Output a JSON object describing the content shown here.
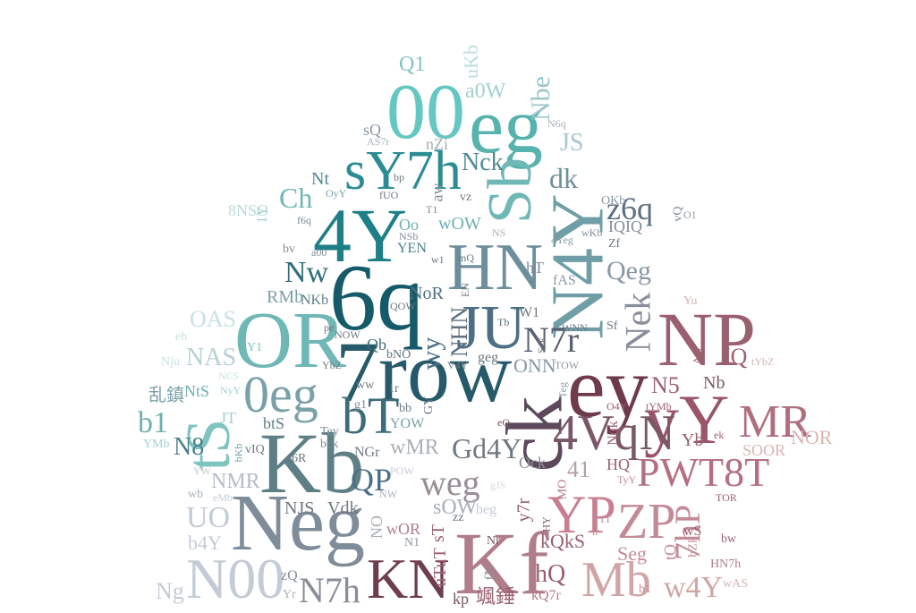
{
  "words": [
    {
      "text": "Neg",
      "color": "#7f8c99"
    },
    {
      "text": "Kb",
      "color": "#5e7f86"
    },
    {
      "text": "4Y",
      "color": "#1e7f86"
    },
    {
      "text": "6q",
      "color": "#155a68"
    },
    {
      "text": "7row",
      "color": "#265a6a"
    },
    {
      "text": "OR",
      "color": "#6fb8b6"
    },
    {
      "text": "00",
      "color": "#64c7c1"
    },
    {
      "text": "eg",
      "color": "#56b3ae"
    },
    {
      "text": "Sb",
      "color": "#6fb8b6"
    },
    {
      "text": "sY7h",
      "color": "#2b8c94"
    },
    {
      "text": "HN",
      "color": "#6d8f9c"
    },
    {
      "text": "N4Y",
      "color": "#6f9ea6"
    },
    {
      "text": "JU",
      "color": "#4c6f86"
    },
    {
      "text": "ey",
      "color": "#6e3a4c"
    },
    {
      "text": "NP",
      "color": "#9a6070"
    },
    {
      "text": "ck",
      "color": "#5c4a5c"
    },
    {
      "text": "Kf",
      "color": "#b07d8a"
    },
    {
      "text": "Mb",
      "color": "#d1a5a5"
    },
    {
      "text": "ZP",
      "color": "#c48b96"
    },
    {
      "text": "YP",
      "color": "#c87f91"
    },
    {
      "text": "N00",
      "color": "#c4cbd7"
    },
    {
      "text": "KN",
      "color": "#6e3d4e"
    },
    {
      "text": "N7h",
      "color": "#8a8e96"
    },
    {
      "text": "MR",
      "color": "#b06f7e"
    },
    {
      "text": "yY",
      "color": "#9a5568"
    },
    {
      "text": "4VqN",
      "color": "#7a5868"
    },
    {
      "text": "PWT8T",
      "color": "#b47080"
    },
    {
      "text": "0eg",
      "color": "#7aa0a8"
    },
    {
      "text": "tS",
      "color": "#7fc4c0"
    },
    {
      "text": "bT",
      "color": "#3d6b7a"
    },
    {
      "text": "weg",
      "color": "#9a8e96"
    },
    {
      "text": "Gd4Y",
      "color": "#6f7880"
    },
    {
      "text": "Nek",
      "color": "#8a8e9c"
    },
    {
      "text": "N7r",
      "color": "#5a6070"
    },
    {
      "text": "Nw",
      "color": "#2f6e7a"
    },
    {
      "text": "Ch",
      "color": "#6fb8b6"
    },
    {
      "text": "Nck",
      "color": "#4c8a94"
    },
    {
      "text": "JS",
      "color": "#a8c7cf"
    },
    {
      "text": "dk",
      "color": "#6d8f9c"
    },
    {
      "text": "z6q",
      "color": "#5e7080"
    },
    {
      "text": "Qeg",
      "color": "#8a98a6"
    },
    {
      "text": "Nbe",
      "color": "#9ac4c8"
    },
    {
      "text": "a0W",
      "color": "#a3d1cf"
    },
    {
      "text": "Q1",
      "color": "#7fc4c0"
    },
    {
      "text": "uKb",
      "color": "#b7dcdb"
    },
    {
      "text": "7hP",
      "color": "#c48b96"
    },
    {
      "text": "w4Y",
      "color": "#d1a5a5"
    },
    {
      "text": "N8",
      "color": "#4c7f8a"
    },
    {
      "text": "b1",
      "color": "#6fb0b0"
    },
    {
      "text": "NAS",
      "color": "#b7d0d6"
    },
    {
      "text": "OAS",
      "color": "#c6e2e0"
    },
    {
      "text": "UO",
      "color": "#c2cad6"
    },
    {
      "text": "NMR",
      "color": "#b4bcc8"
    },
    {
      "text": "QP",
      "color": "#4c6f86"
    },
    {
      "text": "sOW",
      "color": "#a8b0b8"
    },
    {
      "text": "41",
      "color": "#b2a0aa"
    },
    {
      "text": "HQ",
      "color": "#9a6070"
    },
    {
      "text": "NOR",
      "color": "#d8b4b4"
    },
    {
      "text": "IQ",
      "color": "#9a6070"
    },
    {
      "text": "N5",
      "color": "#9a6070"
    },
    {
      "text": "Nb",
      "color": "#7a5868"
    },
    {
      "text": "SOOR",
      "color": "#d8b4b4"
    },
    {
      "text": "ONN",
      "color": "#8a98a6"
    },
    {
      "text": "Seg",
      "color": "#c48b96"
    },
    {
      "text": "hQ",
      "color": "#9a6070"
    },
    {
      "text": "kQkS",
      "color": "#9a6070"
    },
    {
      "text": "Yb",
      "color": "#9a6070"
    },
    {
      "text": "Ock",
      "color": "#8a8e96"
    },
    {
      "text": "wMR",
      "color": "#a8b0b8"
    },
    {
      "text": "bMR",
      "color": "#a8b0b8"
    },
    {
      "text": "Vdk",
      "color": "#6d7880"
    },
    {
      "text": "NJS",
      "color": "#6d7880"
    },
    {
      "text": "Ng",
      "color": "#c4cbd7"
    },
    {
      "text": "b4Y",
      "color": "#c4cbd7"
    },
    {
      "text": "8NSO",
      "color": "#b7dcdb"
    },
    {
      "text": "RMb",
      "color": "#7aa0a8"
    },
    {
      "text": "NKb",
      "color": "#5e7f86"
    },
    {
      "text": "NoR",
      "color": "#4c6f86"
    },
    {
      "text": "Qb",
      "color": "#3d6b7a"
    },
    {
      "text": "YEN",
      "color": "#4c7f8a"
    },
    {
      "text": "wOW",
      "color": "#6fb0b0"
    },
    {
      "text": "Oo",
      "color": "#6fb0b0"
    },
    {
      "text": "Nt",
      "color": "#4c8a94"
    },
    {
      "text": "JT",
      "color": "#a3d1cf"
    },
    {
      "text": "NtS",
      "color": "#6fb0b0"
    },
    {
      "text": "btS",
      "color": "#5e7f86"
    },
    {
      "text": "NGr",
      "color": "#6d7880"
    },
    {
      "text": "YOW",
      "color": "#7aa0a8"
    },
    {
      "text": "wOR",
      "color": "#b07d8a"
    },
    {
      "text": "uTuT",
      "color": "#9a6070"
    },
    {
      "text": "sT",
      "color": "#9a6070"
    },
    {
      "text": "zz",
      "color": "#5e7080"
    },
    {
      "text": "fN",
      "color": "#8a8e96"
    },
    {
      "text": "Nr",
      "color": "#7a5868"
    },
    {
      "text": "N1",
      "color": "#8a98a6"
    },
    {
      "text": "beg",
      "color": "#c4cbd7"
    },
    {
      "text": "tQ",
      "color": "#c48b96"
    },
    {
      "text": "bZP",
      "color": "#c48b96"
    },
    {
      "text": "wS",
      "color": "#9a6070"
    },
    {
      "text": "bw",
      "color": "#9a6070"
    },
    {
      "text": "HN7h",
      "color": "#b07d8a"
    },
    {
      "text": "b1",
      "color": "#c48b96"
    },
    {
      "text": "wAS",
      "color": "#d8b4b4"
    },
    {
      "text": "kQ7r",
      "color": "#b07d8a"
    },
    {
      "text": "kp",
      "color": "#7a5868"
    },
    {
      "text": "颯錘",
      "color": "#9a6070"
    },
    {
      "text": "乱鎮",
      "color": "#7aa0a8"
    },
    {
      "text": "Yr",
      "color": "#a8b0b8"
    },
    {
      "text": "zQ",
      "color": "#7f8c99"
    },
    {
      "text": "W1",
      "color": "#6d7880"
    },
    {
      "text": "Tb",
      "color": "#5e7080"
    },
    {
      "text": "geg",
      "color": "#6d7880"
    },
    {
      "text": "wy",
      "color": "#4c6f86"
    },
    {
      "text": "NHN",
      "color": "#5e7080"
    },
    {
      "text": "bNO",
      "color": "#5e7080"
    },
    {
      "text": "g1",
      "color": "#7f8c99"
    },
    {
      "text": "ww",
      "color": "#6d7880"
    },
    {
      "text": "1r",
      "color": "#5e7080"
    },
    {
      "text": "bb",
      "color": "#6d7880"
    },
    {
      "text": "GY",
      "color": "#5e7080"
    },
    {
      "text": "Tey",
      "color": "#7f8c99"
    },
    {
      "text": "bck",
      "color": "#7f8c99"
    },
    {
      "text": "6R",
      "color": "#6d7880"
    },
    {
      "text": "vIQ",
      "color": "#6d7880"
    },
    {
      "text": "IQIQ",
      "color": "#7f8c99"
    },
    {
      "text": "vQ",
      "color": "#7f8c99"
    },
    {
      "text": "O1",
      "color": "#8a98a6"
    },
    {
      "text": "hT",
      "color": "#7f8c99"
    },
    {
      "text": "fAS",
      "color": "#8a98a6"
    },
    {
      "text": "Zf",
      "color": "#6d7880"
    },
    {
      "text": "4Yeg",
      "color": "#8a98a6"
    },
    {
      "text": "wKb",
      "color": "#7f8c99"
    },
    {
      "text": "OKb",
      "color": "#8a98a6"
    },
    {
      "text": "N6q",
      "color": "#a8b0b8"
    },
    {
      "text": "sQ",
      "color": "#8a98a6"
    },
    {
      "text": "AS7r",
      "color": "#a8b0b8"
    },
    {
      "text": "nZi",
      "color": "#a8b0b8"
    },
    {
      "text": "vz",
      "color": "#6d7880"
    },
    {
      "text": "aw",
      "color": "#7f8c99"
    },
    {
      "text": "T1",
      "color": "#7f8c99"
    },
    {
      "text": "bp",
      "color": "#6d7880"
    },
    {
      "text": "fUO",
      "color": "#6d7880"
    },
    {
      "text": "OyY",
      "color": "#7aa0a8"
    },
    {
      "text": "1Y",
      "color": "#a3d1cf"
    },
    {
      "text": "f6q",
      "color": "#7f8c99"
    },
    {
      "text": "NSb",
      "color": "#7f8c99"
    },
    {
      "text": "NS",
      "color": "#a8b0b8"
    },
    {
      "text": "mQ",
      "color": "#6d7880"
    },
    {
      "text": "w1",
      "color": "#6d7880"
    },
    {
      "text": "EN",
      "color": "#6d7880"
    },
    {
      "text": "bv",
      "color": "#7f8c99"
    },
    {
      "text": "a00",
      "color": "#7f8c99"
    },
    {
      "text": "QOW",
      "color": "#6d7880"
    },
    {
      "text": "pe",
      "color": "#6d7880"
    },
    {
      "text": "NOW",
      "color": "#6d7880"
    },
    {
      "text": "YbZ",
      "color": "#6d7880"
    },
    {
      "text": "V4Y",
      "color": "#6d7880"
    },
    {
      "text": "Y1",
      "color": "#7fc4c0"
    },
    {
      "text": "eh",
      "color": "#c6e2e0"
    },
    {
      "text": "Nju",
      "color": "#c6e2e0"
    },
    {
      "text": "NCS",
      "color": "#c6e2e0"
    },
    {
      "text": "NyY",
      "color": "#a3d1cf"
    },
    {
      "text": "YMb",
      "color": "#a3d1cf"
    },
    {
      "text": "bKb",
      "color": "#7aa0a8"
    },
    {
      "text": "wb",
      "color": "#a8b0b8"
    },
    {
      "text": "eMb",
      "color": "#c4cbd7"
    },
    {
      "text": "YW",
      "color": "#c4cbd7"
    },
    {
      "text": "POW",
      "color": "#c4cbd7"
    },
    {
      "text": "NW",
      "color": "#a8b0b8"
    },
    {
      "text": "NO",
      "color": "#a8b0b8"
    },
    {
      "text": "Sck",
      "color": "#6d7880"
    },
    {
      "text": "WNN",
      "color": "#6d7880"
    },
    {
      "text": "Sf",
      "color": "#6d7880"
    },
    {
      "text": "TOW",
      "color": "#8a98a6"
    },
    {
      "text": "Teg",
      "color": "#8a98a6"
    },
    {
      "text": "O4Y",
      "color": "#9a6070"
    },
    {
      "text": "tYMb",
      "color": "#9a6070"
    },
    {
      "text": "Am",
      "color": "#9a6070"
    },
    {
      "text": "tYbZ",
      "color": "#d8b4b4"
    },
    {
      "text": "Yu",
      "color": "#d8b4b4"
    },
    {
      "text": "ek",
      "color": "#9a6070"
    },
    {
      "text": "TOR",
      "color": "#9a6070"
    },
    {
      "text": "TyY",
      "color": "#c48b96"
    },
    {
      "text": "MO",
      "color": "#b07d8a"
    },
    {
      "text": "HY",
      "color": "#7a5868"
    },
    {
      "text": "1T",
      "color": "#c48b96"
    },
    {
      "text": "ir",
      "color": "#c48b96"
    },
    {
      "text": "gJS",
      "color": "#d8d8dc"
    },
    {
      "text": "eQ",
      "color": "#7a5868"
    },
    {
      "text": "y7r",
      "color": "#9a6070"
    },
    {
      "text": "Nqk",
      "color": "#9a6070"
    }
  ]
}
